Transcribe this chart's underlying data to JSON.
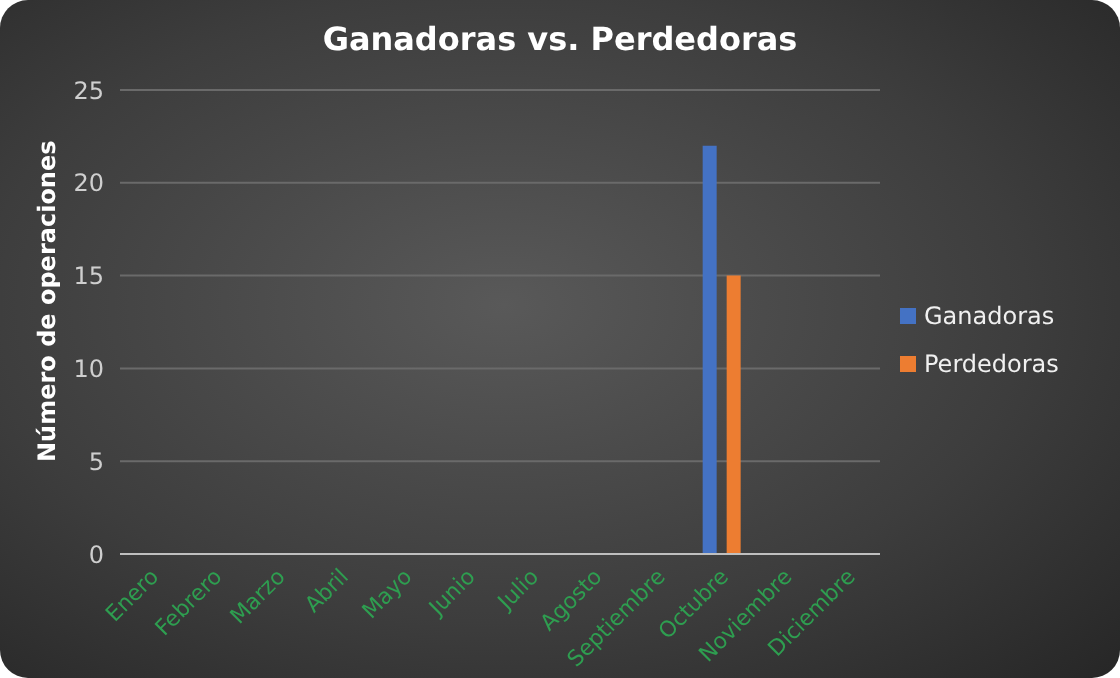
{
  "chart_data": {
    "type": "bar",
    "title": "Ganadoras vs. Perdedoras",
    "ylabel": "Número de operaciones",
    "categories": [
      "Enero",
      "Febrero",
      "Marzo",
      "Abril",
      "Mayo",
      "Junio",
      "Julio",
      "Agosto",
      "Septiembre",
      "Octubre",
      "Noviembre",
      "Diciembre"
    ],
    "series": [
      {
        "name": "Ganadoras",
        "color": "#4472c4",
        "values": [
          null,
          null,
          null,
          null,
          null,
          null,
          null,
          null,
          null,
          22,
          null,
          null
        ]
      },
      {
        "name": "Perdedoras",
        "color": "#ed7d31",
        "values": [
          null,
          null,
          null,
          null,
          null,
          null,
          null,
          null,
          null,
          15,
          null,
          null
        ]
      }
    ],
    "ylim": [
      0,
      25
    ],
    "yticks": [
      0,
      5,
      10,
      15,
      20,
      25
    ],
    "grid": "y",
    "legend": "right"
  }
}
